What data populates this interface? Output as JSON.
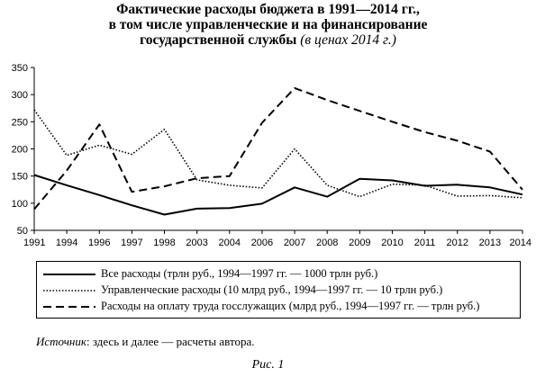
{
  "chart_data": {
    "type": "line",
    "title_lines": [
      "Фактические расходы бюджета в 1991—2014 гг.,",
      "в том числе управленческие и на финансирование",
      "государственной службы"
    ],
    "title_suffix": "(в ценах 2014 г.)",
    "categories": [
      "1991",
      "1994",
      "1996",
      "1997",
      "1998",
      "2003",
      "2004",
      "2006",
      "2007",
      "2008",
      "2009",
      "2010",
      "2011",
      "2012",
      "2013",
      "2014"
    ],
    "ylim": [
      50,
      350
    ],
    "yticks": [
      50,
      100,
      150,
      200,
      250,
      300,
      350
    ],
    "grid": false,
    "series": [
      {
        "name": "Все расходы (трлн руб., 1994—1997 гг. — 1000 трлн руб.)",
        "style": "solid",
        "values": [
          152,
          133,
          115,
          96,
          79,
          90,
          91,
          99,
          129,
          112,
          145,
          142,
          132,
          134,
          129,
          116
        ]
      },
      {
        "name": "Управленческие расходы (10 млрд руб., 1994—1997 гг. — 10 трлн руб.)",
        "style": "dotted",
        "values": [
          272,
          188,
          207,
          190,
          236,
          143,
          133,
          128,
          200,
          133,
          112,
          135,
          133,
          113,
          114,
          110
        ]
      },
      {
        "name": "Расходы на оплату труда госслужащих (млрд руб., 1994—1997 гг. — трлн руб.)",
        "style": "dashed",
        "values": [
          89,
          160,
          245,
          121,
          131,
          146,
          150,
          248,
          312,
          290,
          270,
          250,
          231,
          215,
          195,
          125
        ]
      }
    ]
  },
  "source": {
    "label": "Источник",
    "text": ": здесь и далее — расчеты автора."
  },
  "caption": "Рис. 1"
}
